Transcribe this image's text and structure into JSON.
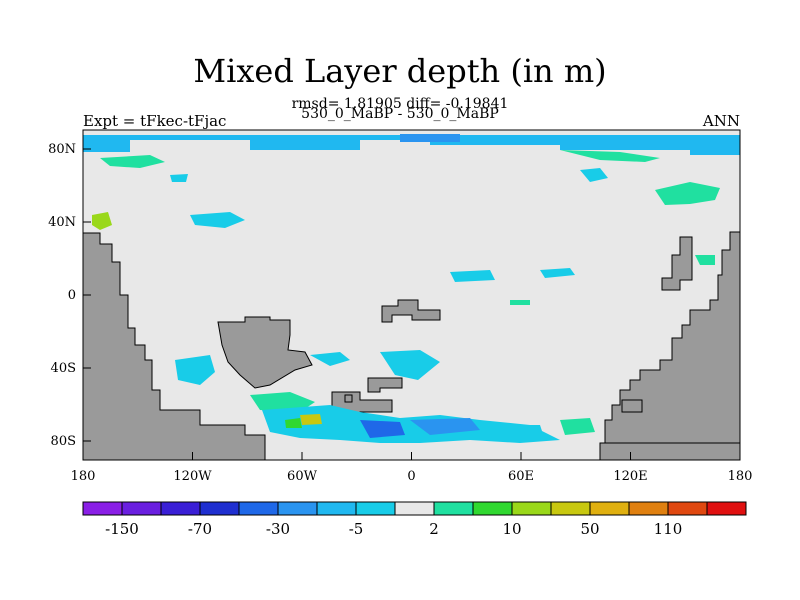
{
  "figure": {
    "title": "Mixed Layer depth (in m)",
    "stats": "rmsd= 1.81905 diff= -0.19841",
    "cases": "530_0_MaBP - 530_0_MaBP",
    "experiment": "Expt = tFkec-tFjac",
    "season": "ANN"
  },
  "axes": {
    "lon_ticks": [
      "180",
      "120W",
      "60W",
      "0",
      "60E",
      "120E",
      "180"
    ],
    "lat_ticks": [
      "80N",
      "40N",
      "0",
      "40S",
      "80S"
    ]
  },
  "colorbar": {
    "colors": [
      "#8a1fe6",
      "#6a1fe0",
      "#3a1fd6",
      "#1f2fd0",
      "#1f68e8",
      "#2a94f0",
      "#20b8f0",
      "#18cce8",
      "#e8e8e8",
      "#20e0a0",
      "#30d830",
      "#9ad81a",
      "#c8c810",
      "#e0b010",
      "#e08010",
      "#e04810",
      "#e01010"
    ],
    "labels": [
      "-150",
      "-70",
      "-30",
      "-5",
      "2",
      "10",
      "50",
      "110"
    ],
    "land_color": "#9a9a9a",
    "ocean_color": "#e8e8e8"
  }
}
